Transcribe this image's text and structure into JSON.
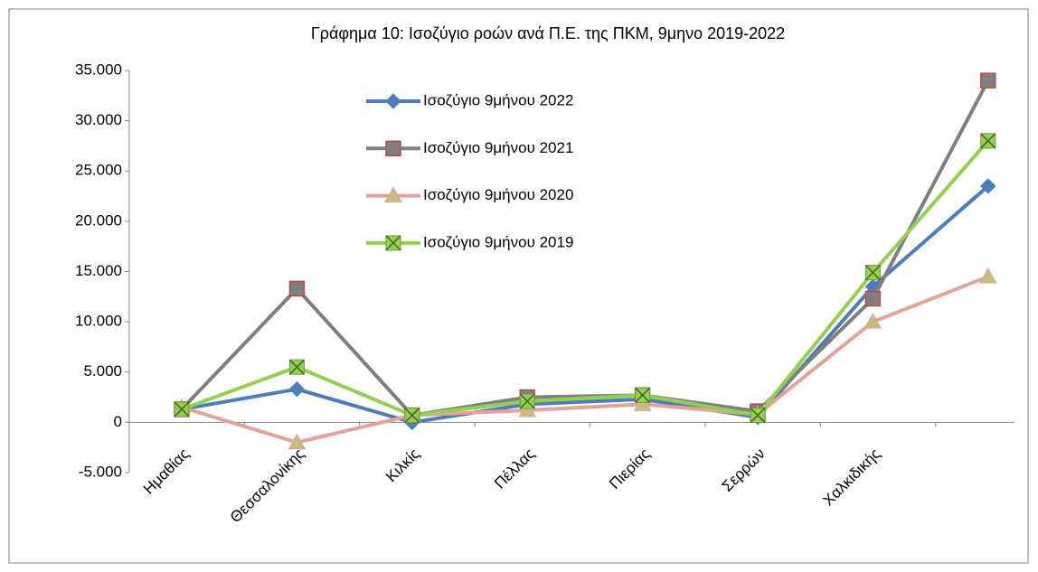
{
  "chart_data": {
    "type": "line",
    "title": "Γράφημα 10: Ισοζύγιο ροών ανά Π.Ε. της ΠΚΜ, 9μηνο 2019-2022",
    "categories": [
      "Ημαθίας",
      "Θεσσαλονίκης",
      "Κιλκίς",
      "Πέλλας",
      "Πιερίας",
      "Σερρών",
      "Χαλκιδικής",
      null
    ],
    "series": [
      {
        "name": "Ισοζύγιο 9μήνου 2022",
        "color": "#4a7ebb",
        "marker": "diamond",
        "values": [
          1300,
          3300,
          0,
          1800,
          2300,
          500,
          13500,
          23500
        ]
      },
      {
        "name": "Ισοζύγιο 9μήνου 2021",
        "color": "#7f7f7f",
        "marker": "square",
        "values": [
          1300,
          13300,
          700,
          2500,
          2700,
          1100,
          12300,
          34000
        ]
      },
      {
        "name": "Ισοζύγιο 9μήνου 2020",
        "color": "#e6a19a",
        "marker": "triangle",
        "values": [
          1500,
          -2000,
          700,
          1200,
          1800,
          800,
          10000,
          14500
        ]
      },
      {
        "name": "Ισοζύγιο 9μήνου 2019",
        "color": "#92d050",
        "marker": "x",
        "values": [
          1300,
          5500,
          700,
          2100,
          2700,
          700,
          14900,
          28000
        ]
      }
    ],
    "ylim": [
      -5000,
      35000
    ],
    "yticks": [
      {
        "value": -5000,
        "label": "-5.000"
      },
      0,
      {
        "value": 5000,
        "label": "5.000"
      },
      {
        "value": 10000,
        "label": "10.000"
      },
      {
        "value": 15000,
        "label": "15.000"
      },
      {
        "value": 20000,
        "label": "20.000"
      },
      {
        "value": 25000,
        "label": "25.000"
      },
      {
        "value": 30000,
        "label": "30.000"
      },
      {
        "value": 35000,
        "label": "35.000"
      }
    ],
    "grid": false
  }
}
